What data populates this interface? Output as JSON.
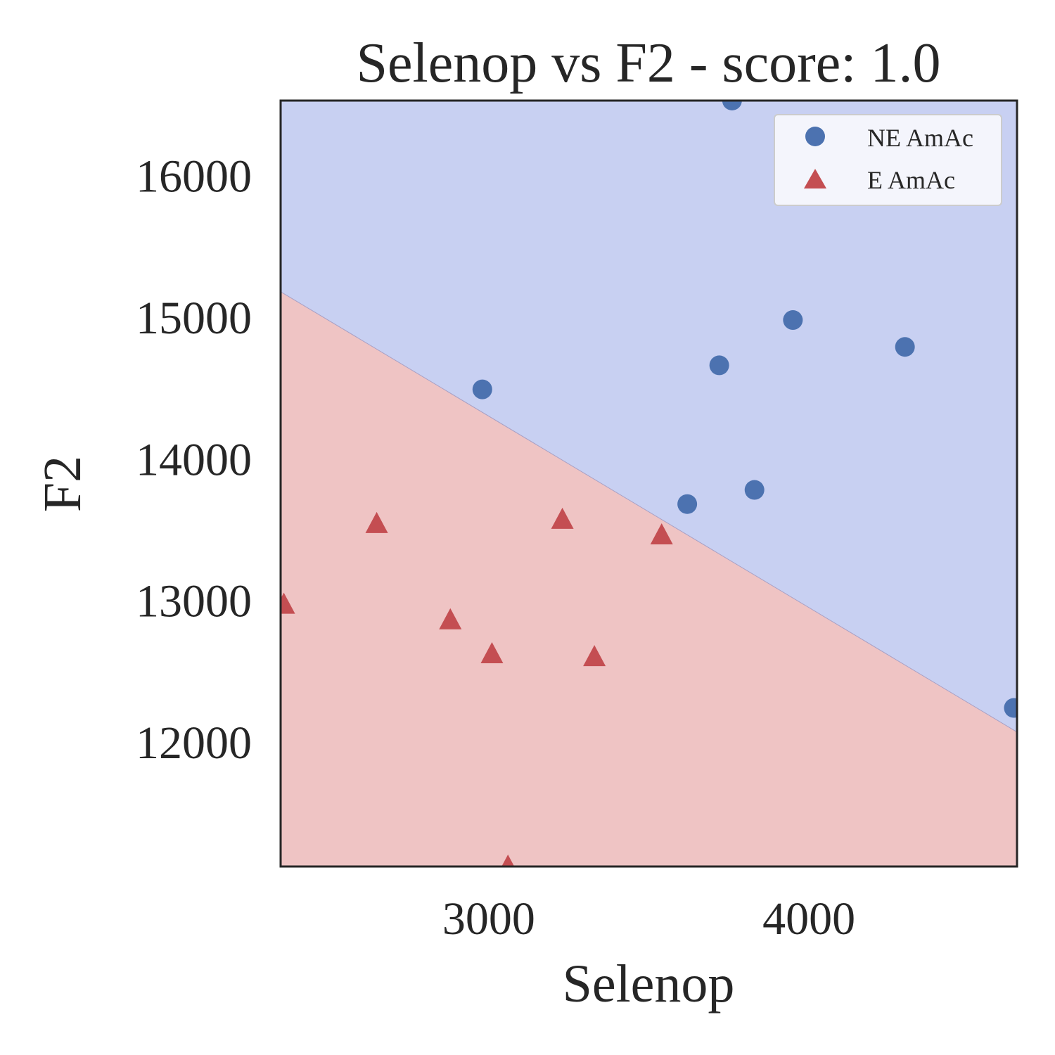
{
  "chart_data": {
    "type": "scatter",
    "title": "Selenop vs F2 - score: 1.0",
    "xlabel": "Selenop",
    "ylabel": "F2",
    "xlim": [
      2350,
      4650
    ],
    "ylim": [
      11120,
      16530
    ],
    "xticks": [
      3000,
      4000
    ],
    "yticks": [
      12000,
      13000,
      14000,
      15000,
      16000
    ],
    "grid": false,
    "legend_position": "top-right",
    "decision_boundary": {
      "points": [
        [
          2350,
          15180
        ],
        [
          4650,
          12070
        ]
      ],
      "regions": [
        {
          "name": "NE AmAc",
          "color": "#c8d0f2",
          "side": "above"
        },
        {
          "name": "E AmAc",
          "color": "#efc4c4",
          "side": "below"
        }
      ]
    },
    "series": [
      {
        "name": "NE AmAc",
        "marker": "circle",
        "color": "#4c72b0",
        "points": [
          [
            3760,
            16530
          ],
          [
            3950,
            14980
          ],
          [
            4300,
            14790
          ],
          [
            3720,
            14660
          ],
          [
            2980,
            14490
          ],
          [
            3830,
            13780
          ],
          [
            3620,
            13680
          ],
          [
            4640,
            12240
          ]
        ]
      },
      {
        "name": "E AmAc",
        "marker": "triangle",
        "color": "#c44e52",
        "points": [
          [
            2650,
            13540
          ],
          [
            3230,
            13570
          ],
          [
            3540,
            13460
          ],
          [
            2360,
            12970
          ],
          [
            2880,
            12860
          ],
          [
            3010,
            12620
          ],
          [
            3330,
            12600
          ],
          [
            3060,
            11120
          ]
        ]
      }
    ]
  }
}
